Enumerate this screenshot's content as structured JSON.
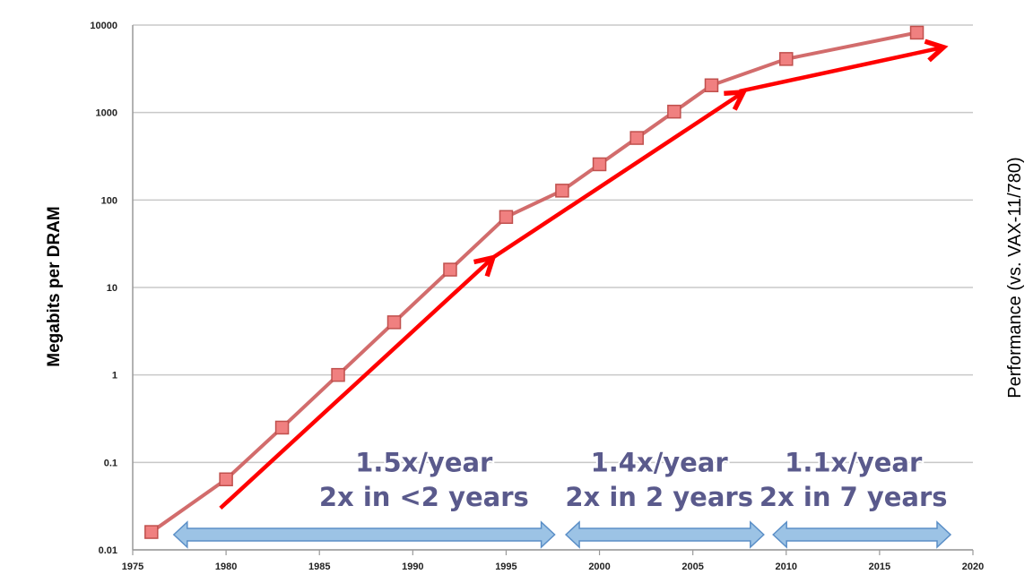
{
  "chart_data": {
    "type": "line",
    "y_scale": "log",
    "xlabel": "",
    "ylabel": "Megabits per DRAM",
    "ylabel_right": "Performance (vs. VAX-11/780)",
    "xlim": [
      1975,
      2020
    ],
    "ylim": [
      0.01,
      10000
    ],
    "x_ticks": [
      "1975",
      "1980",
      "1985",
      "1990",
      "1995",
      "2000",
      "2005",
      "2010",
      "2015",
      "2020"
    ],
    "y_ticks": [
      "0.01",
      "0.1",
      "1",
      "10",
      "100",
      "1000",
      "10000"
    ],
    "grid": "horizontal",
    "series": [
      {
        "color": "#cd5c5c",
        "marker_color": "#f08080",
        "x": [
          1976,
          1980,
          1983,
          1986,
          1989,
          1992,
          1995,
          1998,
          2000,
          2002,
          2004,
          2006,
          2010,
          2017
        ],
        "y": [
          0.016,
          0.064,
          0.25,
          1,
          4,
          16,
          64,
          128,
          256,
          512,
          1024,
          2048,
          4096,
          8192
        ]
      }
    ],
    "trend_arrows": [
      {
        "x": [
          1979.7,
          1994.2
        ],
        "y": [
          0.03,
          21
        ],
        "color": "#ff0000"
      },
      {
        "x": [
          1994.3,
          2007.6
        ],
        "y": [
          22,
          1650
        ],
        "color": "#ff0000"
      },
      {
        "x": [
          2007.5,
          2018.3
        ],
        "y": [
          1750,
          5500
        ],
        "color": "#ff0000"
      }
    ],
    "period_arrows": [
      {
        "x": [
          1977.2,
          1997.6
        ],
        "color": "#9cc3e5"
      },
      {
        "x": [
          1998.2,
          2008.8
        ],
        "color": "#9cc3e5"
      },
      {
        "x": [
          2009.3,
          2018.8
        ],
        "color": "#9cc3e5"
      }
    ],
    "annotations": [
      {
        "lines": [
          "1.5x/year",
          "2x in <2 years"
        ],
        "x": 1990.6,
        "y": [
          0.1,
          0.04
        ]
      },
      {
        "lines": [
          "1.4x/year",
          "2x in 2 years"
        ],
        "x": 2003.2,
        "y": [
          0.1,
          0.04
        ]
      },
      {
        "lines": [
          "1.1x/year",
          "2x in 7 years"
        ],
        "x": 2013.6,
        "y": [
          0.1,
          0.04
        ]
      }
    ]
  }
}
